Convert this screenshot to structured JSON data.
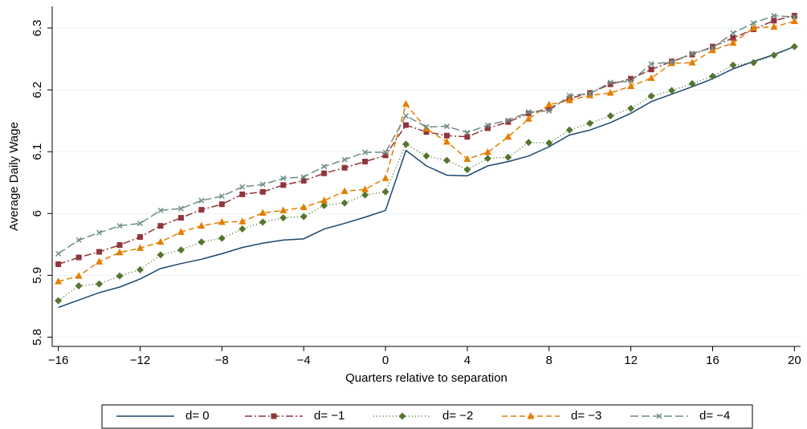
{
  "chart_data": {
    "type": "line",
    "y_label": "Average Daily Wage",
    "x_label": "Quarters relative to separation",
    "x": [
      -16,
      -15,
      -14,
      -13,
      -12,
      -11,
      -10,
      -9,
      -8,
      -7,
      -6,
      -5,
      -4,
      -3,
      -2,
      -1,
      0,
      1,
      2,
      3,
      4,
      5,
      6,
      7,
      8,
      9,
      10,
      11,
      12,
      13,
      14,
      15,
      16,
      17,
      18,
      19,
      20
    ],
    "xlim": [
      -16.3,
      20.3
    ],
    "xticks": [
      {
        "value": -16,
        "label": "−16"
      },
      {
        "value": -12,
        "label": "−12"
      },
      {
        "value": -8,
        "label": "−8"
      },
      {
        "value": -4,
        "label": "−4"
      },
      0,
      4,
      8,
      12,
      16,
      20
    ],
    "ylim": [
      5.785,
      6.335
    ],
    "yticks": [
      5.8,
      5.9,
      6,
      6.1,
      6.2,
      6.3
    ],
    "grid": true,
    "legend": "bottom",
    "series": [
      {
        "name": "d= 0",
        "color": "#1a476f",
        "dash": "solid",
        "marker": "none",
        "values": [
          5.848,
          5.86,
          5.872,
          5.881,
          5.894,
          5.911,
          5.919,
          5.926,
          5.935,
          5.945,
          5.952,
          5.957,
          5.959,
          5.975,
          5.984,
          5.994,
          6.005,
          6.102,
          6.077,
          6.062,
          6.061,
          6.077,
          6.084,
          6.093,
          6.108,
          6.127,
          6.135,
          6.147,
          6.162,
          6.181,
          6.193,
          6.205,
          6.218,
          6.234,
          6.246,
          6.257,
          6.27
        ]
      },
      {
        "name": "d= −1",
        "color": "#90353b",
        "dash": "dashdot",
        "marker": "square",
        "values": [
          5.918,
          5.929,
          5.938,
          5.949,
          5.962,
          5.98,
          5.993,
          6.006,
          6.015,
          6.031,
          6.035,
          6.046,
          6.053,
          6.065,
          6.074,
          6.084,
          6.094,
          6.143,
          6.132,
          6.126,
          6.124,
          6.138,
          6.148,
          6.162,
          6.17,
          6.186,
          6.195,
          6.209,
          6.218,
          6.233,
          6.246,
          6.257,
          6.27,
          6.284,
          6.298,
          6.312,
          6.32
        ]
      },
      {
        "name": "d= −2",
        "color": "#55752f",
        "dash": "dot",
        "marker": "diamond",
        "values": [
          5.859,
          5.883,
          5.886,
          5.899,
          5.909,
          5.933,
          5.941,
          5.954,
          5.96,
          5.975,
          5.986,
          5.993,
          5.995,
          6.013,
          6.017,
          6.03,
          6.035,
          6.112,
          6.093,
          6.086,
          6.071,
          6.089,
          6.091,
          6.115,
          6.114,
          6.135,
          6.146,
          6.158,
          6.17,
          6.19,
          6.199,
          6.21,
          6.222,
          6.24,
          6.244,
          6.256,
          6.27
        ]
      },
      {
        "name": "d= −3",
        "color": "#e37e00",
        "dash": "dash",
        "marker": "triangle",
        "values": [
          5.89,
          5.899,
          5.922,
          5.937,
          5.944,
          5.954,
          5.97,
          5.98,
          5.986,
          5.987,
          6.001,
          6.005,
          6.01,
          6.021,
          6.036,
          6.039,
          6.057,
          6.177,
          6.137,
          6.116,
          6.088,
          6.099,
          6.124,
          6.153,
          6.176,
          6.183,
          6.191,
          6.195,
          6.206,
          6.219,
          6.243,
          6.244,
          6.264,
          6.276,
          6.3,
          6.302,
          6.311
        ]
      },
      {
        "name": "d= −4",
        "color": "#6e8e84",
        "dash": "longdash",
        "marker": "x",
        "values": [
          5.935,
          5.957,
          5.969,
          5.98,
          5.984,
          6.005,
          6.008,
          6.021,
          6.028,
          6.043,
          6.047,
          6.057,
          6.059,
          6.076,
          6.087,
          6.099,
          6.099,
          6.158,
          6.14,
          6.141,
          6.131,
          6.143,
          6.151,
          6.164,
          6.166,
          6.191,
          6.194,
          6.212,
          6.214,
          6.242,
          6.245,
          6.259,
          6.268,
          6.292,
          6.308,
          6.32,
          6.318
        ]
      }
    ]
  }
}
